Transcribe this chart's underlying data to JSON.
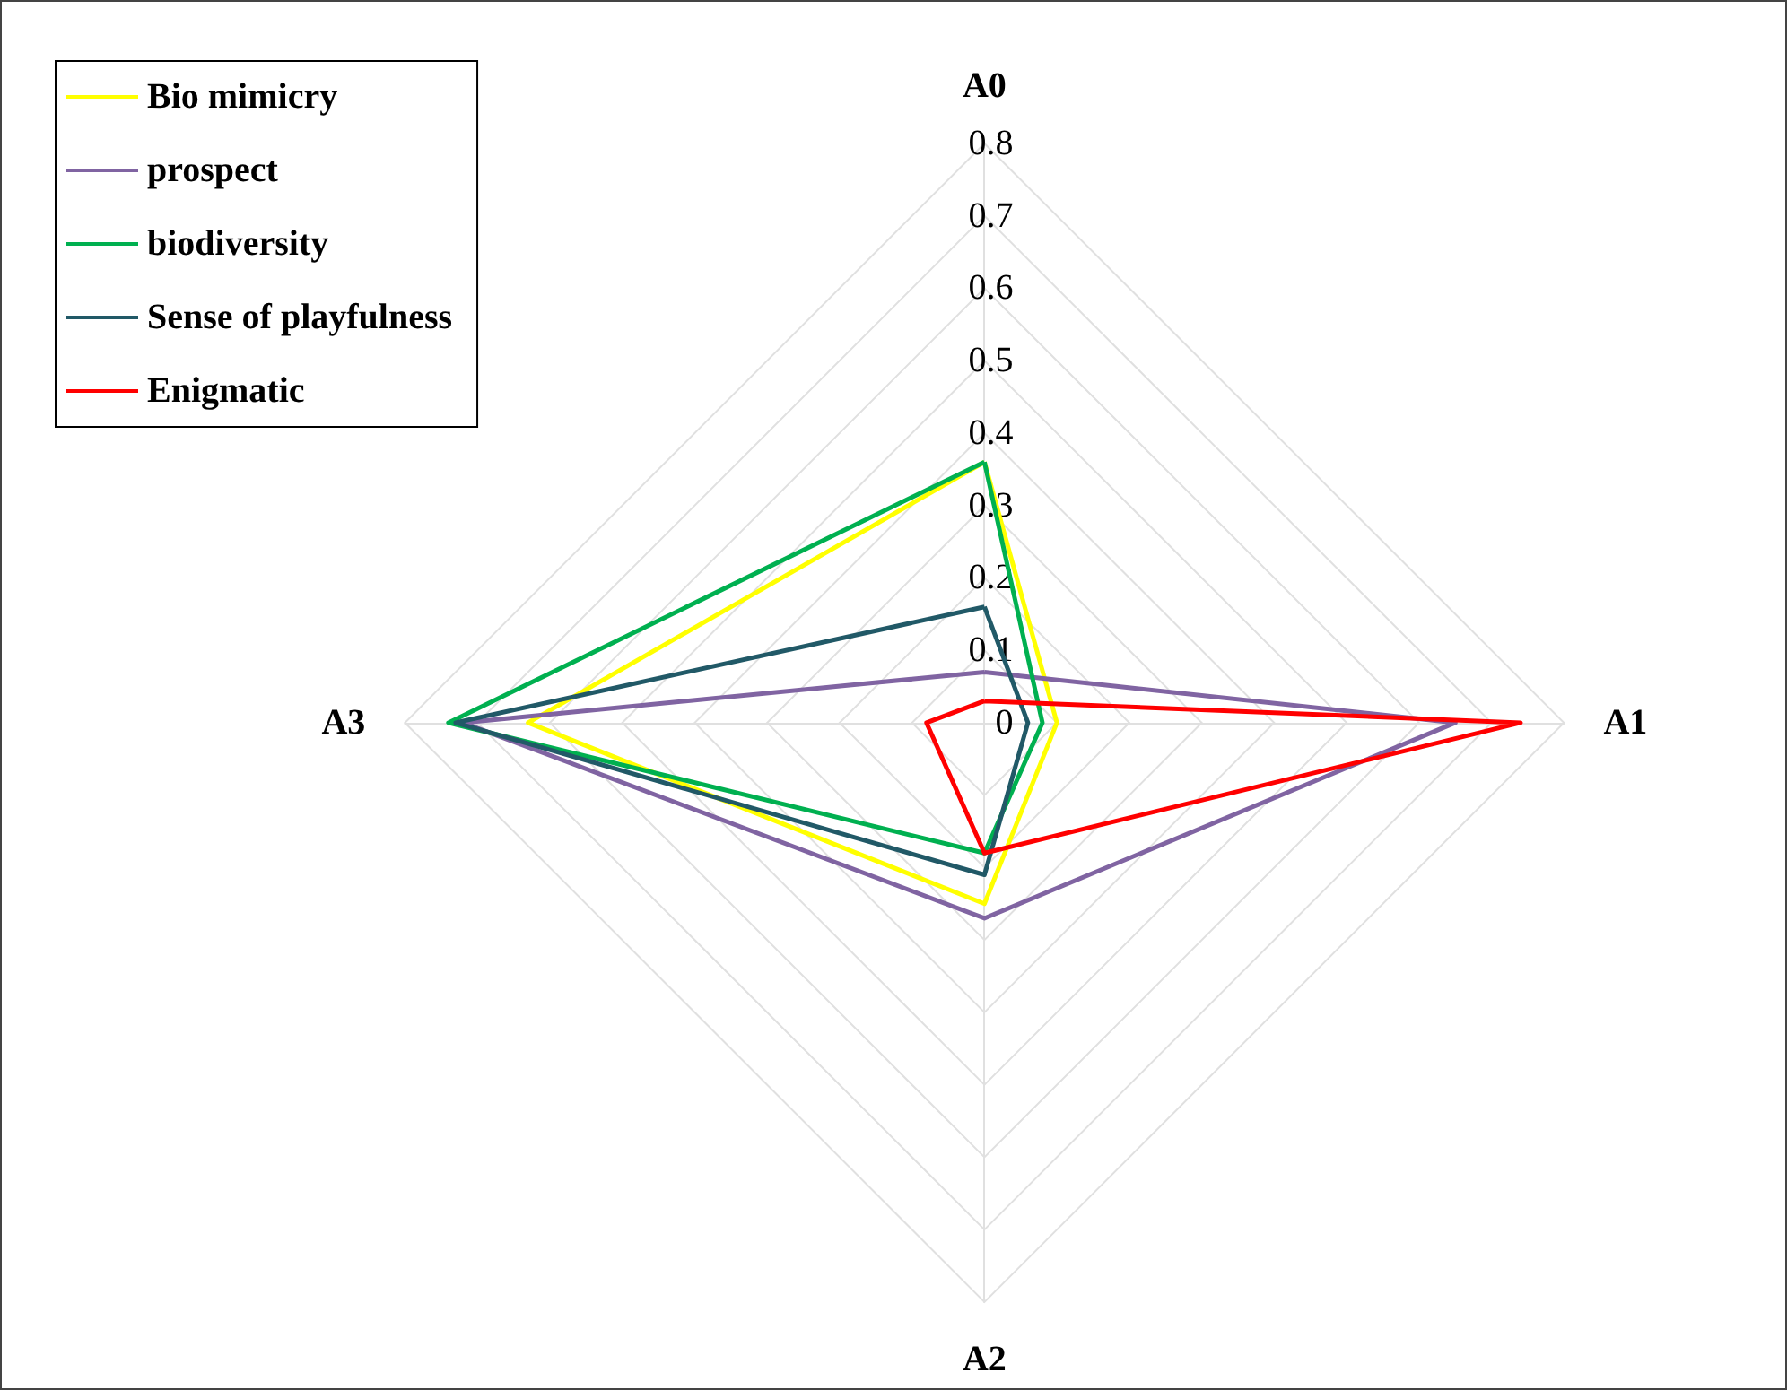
{
  "chart_data": {
    "type": "radar",
    "categories": [
      "A0",
      "A1",
      "A2",
      "A3"
    ],
    "ylim": [
      0,
      0.8
    ],
    "yticks": [
      0,
      0.1,
      0.2,
      0.3,
      0.4,
      0.5,
      0.6,
      0.7,
      0.8
    ],
    "grid": true,
    "legend": "top left",
    "marker": "none",
    "line_style": "solid",
    "series": [
      {
        "name": "Bio mimicry",
        "color": "#ffff00",
        "values": [
          0.36,
          0.1,
          0.25,
          0.63
        ]
      },
      {
        "name": "prospect",
        "color": "#8064a2",
        "values": [
          0.07,
          0.65,
          0.27,
          0.72
        ]
      },
      {
        "name": "biodiversity",
        "color": "#00b050",
        "values": [
          0.36,
          0.08,
          0.18,
          0.74
        ]
      },
      {
        "name": "Sense of playfulness",
        "color": "#215967",
        "values": [
          0.16,
          0.06,
          0.21,
          0.73
        ]
      },
      {
        "name": "Enigmatic",
        "color": "#ff0000",
        "values": [
          0.03,
          0.74,
          0.18,
          0.08
        ]
      }
    ]
  }
}
